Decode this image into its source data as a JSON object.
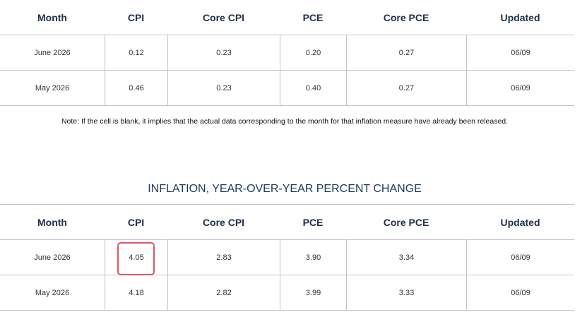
{
  "tables": [
    {
      "columns": [
        "Month",
        "CPI",
        "Core CPI",
        "PCE",
        "Core PCE",
        "Updated"
      ],
      "rows": [
        [
          "June 2026",
          "0.12",
          "0.23",
          "0.20",
          "0.27",
          "06/09"
        ],
        [
          "May 2026",
          "0.46",
          "0.23",
          "0.40",
          "0.27",
          "06/09"
        ]
      ]
    },
    {
      "title": "INFLATION, YEAR-OVER-YEAR PERCENT CHANGE",
      "columns": [
        "Month",
        "CPI",
        "Core CPI",
        "PCE",
        "Core PCE",
        "Updated"
      ],
      "rows": [
        [
          "June 2026",
          "4.05",
          "2.83",
          "3.90",
          "3.34",
          "06/09"
        ],
        [
          "May 2026",
          "4.18",
          "2.82",
          "3.99",
          "3.33",
          "06/09"
        ]
      ]
    }
  ],
  "note": "Note: If the cell is blank, it implies that the actual data corresponding to the month for that inflation measure have already been released."
}
